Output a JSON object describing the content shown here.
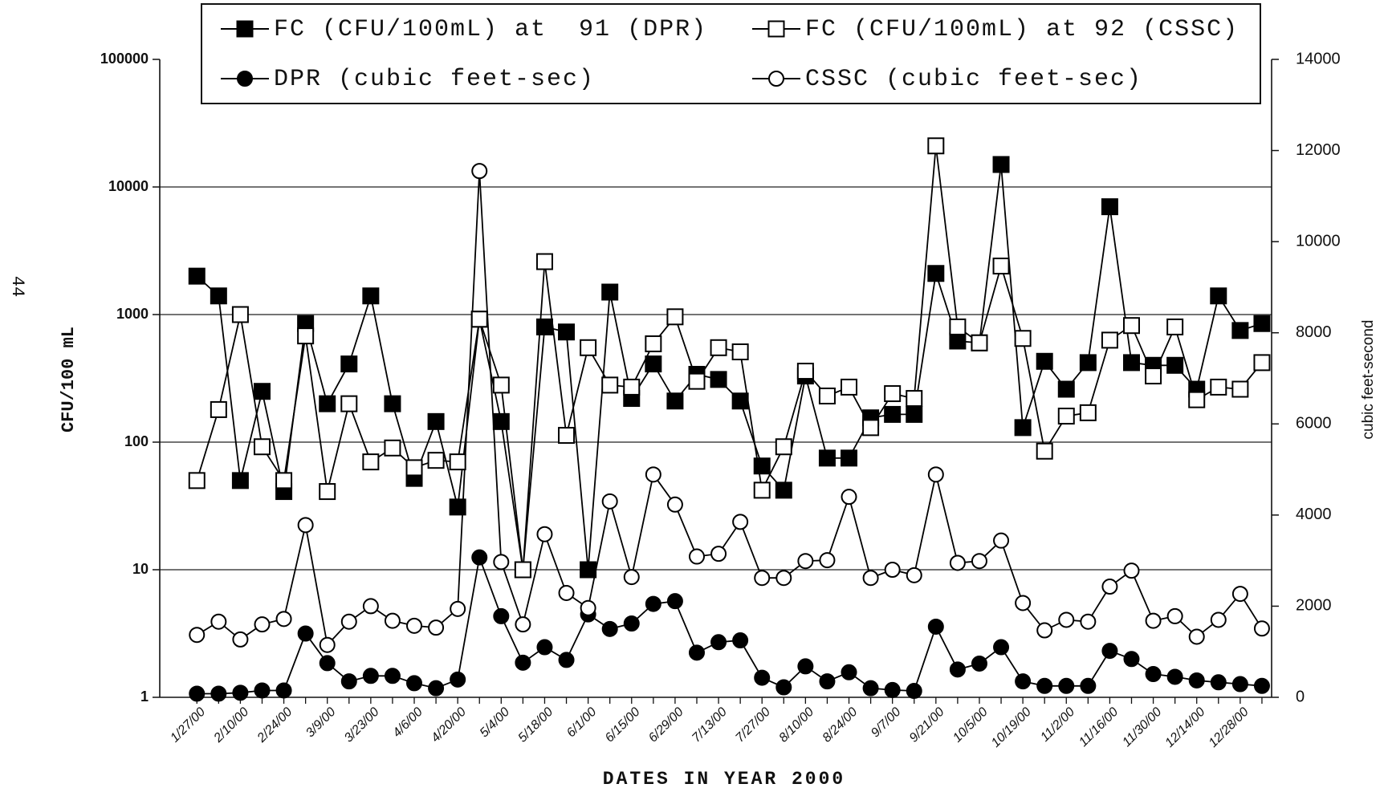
{
  "chart_data": {
    "type": "line",
    "page_label": "44",
    "x_label": "DATES IN YEAR 2000",
    "y_label": "CFU/100 mL",
    "y2_label": "cubic feet-second",
    "categories": [
      "1/27/00",
      null,
      "2/10/00",
      null,
      "2/24/00",
      null,
      "3/9/00",
      null,
      "3/23/00",
      null,
      "4/6/00",
      null,
      "4/20/00",
      null,
      "5/4/00",
      null,
      "5/18/00",
      null,
      "6/1/00",
      null,
      "6/15/00",
      null,
      "6/29/00",
      null,
      "7/13/00",
      null,
      "7/27/00",
      null,
      "8/10/00",
      null,
      "8/24/00",
      null,
      "9/7/00",
      null,
      "9/21/00",
      null,
      "10/5/00",
      null,
      "10/19/00",
      null,
      "11/2/00",
      null,
      "11/16/00",
      null,
      "11/30/00",
      null,
      "12/14/00",
      null,
      "12/28/00",
      null
    ],
    "ylog": true,
    "ylim": [
      1,
      100000
    ],
    "yticks": [
      1,
      10,
      100,
      1000,
      10000,
      100000
    ],
    "y2lim": [
      0,
      14000
    ],
    "y2ticks": [
      0,
      2000,
      4000,
      6000,
      8000,
      10000,
      12000,
      14000
    ],
    "grid": true,
    "legend": "top",
    "series": [
      {
        "name": "FC (CFU/100mL) at  91 (DPR)",
        "color": "#000000",
        "marker": "square",
        "marker_fill": "#000000",
        "values": [
          2000,
          1400,
          50,
          250,
          41,
          850,
          200,
          410,
          1400,
          200,
          52,
          145,
          31,
          920,
          145,
          10,
          800,
          730,
          10,
          1500,
          220,
          410,
          210,
          340,
          310,
          210,
          65,
          42,
          330,
          75,
          75,
          155,
          165,
          165,
          2100,
          620,
          600,
          15000,
          130,
          430,
          260,
          420,
          7000,
          420,
          400,
          400,
          260,
          1400,
          750,
          850
        ]
      },
      {
        "name": "FC (CFU/100mL) at 92 (CSSC)",
        "color": "#000000",
        "marker": "square",
        "marker_fill": "#ffffff",
        "values": [
          50,
          180,
          1000,
          92,
          50,
          680,
          41,
          200,
          70,
          90,
          63,
          72,
          70,
          920,
          280,
          10,
          2600,
          113,
          550,
          280,
          270,
          590,
          960,
          300,
          550,
          510,
          42,
          92,
          360,
          230,
          270,
          130,
          240,
          220,
          21000,
          800,
          600,
          2400,
          650,
          85,
          160,
          170,
          630,
          820,
          330,
          800,
          215,
          270,
          260,
          420
        ]
      },
      {
        "name": "DPR (cubic feet-sec)",
        "color": "#000000",
        "marker": "circle",
        "marker_fill": "#000000",
        "axis": "y2",
        "values": [
          80,
          80,
          100,
          150,
          150,
          1400,
          750,
          350,
          470,
          470,
          310,
          200,
          390,
          3070,
          1780,
          760,
          1100,
          820,
          1820,
          1500,
          1620,
          2050,
          2110,
          980,
          1210,
          1250,
          430,
          220,
          680,
          350,
          550,
          200,
          160,
          140,
          1550,
          610,
          740,
          1100,
          350,
          250,
          250,
          250,
          1020,
          840,
          510,
          450,
          370,
          330,
          290,
          250
        ]
      },
      {
        "name": "CSSC (cubic feet-sec)",
        "color": "#000000",
        "marker": "circle",
        "marker_fill": "#ffffff",
        "axis": "y2",
        "values": [
          1370,
          1660,
          1270,
          1600,
          1720,
          3780,
          1150,
          1660,
          2000,
          1680,
          1570,
          1530,
          1940,
          11550,
          2970,
          1600,
          3580,
          2290,
          1960,
          4300,
          2640,
          4890,
          4230,
          3090,
          3150,
          3850,
          2620,
          2620,
          2990,
          3010,
          4400,
          2620,
          2800,
          2680,
          4890,
          2950,
          2990,
          3440,
          2070,
          1470,
          1700,
          1660,
          2430,
          2780,
          1680,
          1780,
          1330,
          1700,
          2270,
          1510
        ]
      }
    ]
  }
}
